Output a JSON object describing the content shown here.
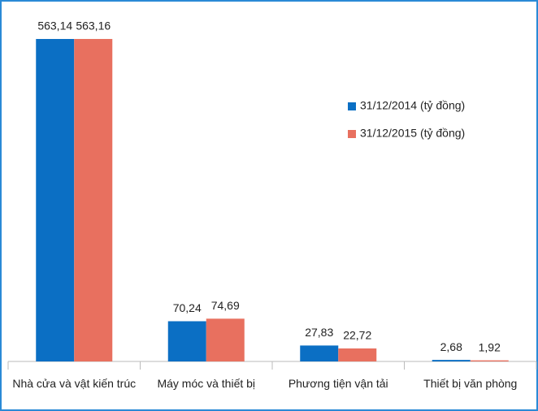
{
  "chart_data": {
    "type": "bar",
    "categories": [
      "Nhà cửa và vật kiến trúc",
      "Máy móc và thiết bị",
      "Phương tiện vận tải",
      "Thiết bị văn phòng"
    ],
    "series": [
      {
        "name": "31/12/2014 (tỷ đồng)",
        "color": "#0b6fc4",
        "values": [
          563.14,
          70.24,
          27.83,
          2.68
        ],
        "value_labels": [
          "563,14",
          "70,24",
          "27,83",
          "2,68"
        ]
      },
      {
        "name": "31/12/2015 (tỷ đồng)",
        "color": "#e8705f",
        "values": [
          563.16,
          74.69,
          22.72,
          1.92
        ],
        "value_labels": [
          "563,16",
          "74,69",
          "22,72",
          "1,92"
        ]
      }
    ],
    "ylim": [
      0,
      600
    ],
    "legend": "right"
  }
}
